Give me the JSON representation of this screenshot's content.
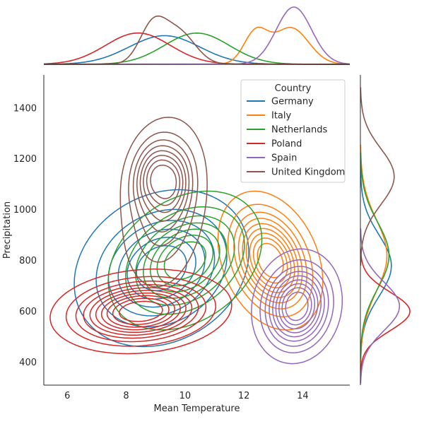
{
  "chart_data": {
    "type": "kde-joint",
    "xlabel": "Mean Temperature",
    "ylabel": "Precipitation",
    "xlim": [
      5.2,
      15.6
    ],
    "ylim": [
      310,
      1530
    ],
    "xticks": [
      6,
      8,
      10,
      12,
      14
    ],
    "yticks": [
      400,
      600,
      800,
      1000,
      1200,
      1400
    ],
    "grid": false,
    "legend": {
      "title": "Country",
      "position": "top-right"
    },
    "series": [
      {
        "name": "Germany",
        "color": "#1f77b4",
        "components": [
          {
            "mx": 9.2,
            "my": 770,
            "sx": 1.25,
            "sy": 130,
            "rho": 0.2,
            "w": 1
          }
        ],
        "levels": 6
      },
      {
        "name": "Italy",
        "color": "#ff7f0e",
        "components": [
          {
            "mx": 12.9,
            "my": 800,
            "sx": 0.75,
            "sy": 115,
            "rho": -0.3,
            "w": 1
          }
        ],
        "levels": 9
      },
      {
        "name": "Netherlands",
        "color": "#2ca02c",
        "components": [
          {
            "mx": 10.0,
            "my": 800,
            "sx": 1.1,
            "sy": 115,
            "rho": 0.3,
            "w": 1
          }
        ],
        "levels": 7
      },
      {
        "name": "Poland",
        "color": "#d62728",
        "components": [
          {
            "mx": 8.5,
            "my": 600,
            "sx": 1.3,
            "sy": 70,
            "rho": 0.15,
            "w": 1
          }
        ],
        "levels": 10
      },
      {
        "name": "Spain",
        "color": "#9467bd",
        "components": [
          {
            "mx": 13.8,
            "my": 620,
            "sx": 0.65,
            "sy": 95,
            "rho": 0.1,
            "w": 1
          }
        ],
        "levels": 9
      },
      {
        "name": "United Kingdom",
        "color": "#8c564b",
        "components": [
          {
            "mx": 8.9,
            "my": 1140,
            "sx": 0.45,
            "sy": 85,
            "rho": 0.2,
            "w": 1
          },
          {
            "mx": 9.6,
            "my": 1110,
            "sx": 0.4,
            "sy": 80,
            "rho": 0.1,
            "w": 0.8
          },
          {
            "mx": 9.3,
            "my": 1020,
            "sx": 0.7,
            "sy": 160,
            "rho": 0.2,
            "w": 0.9
          }
        ],
        "levels": 8
      }
    ],
    "marginal_x": [
      {
        "name": "Germany",
        "peaks": [
          {
            "m": 9.3,
            "s": 1.2,
            "w": 1
          }
        ]
      },
      {
        "name": "Italy",
        "peaks": [
          {
            "m": 12.4,
            "s": 0.4,
            "w": 0.6
          },
          {
            "m": 13.6,
            "s": 0.6,
            "w": 0.7
          }
        ]
      },
      {
        "name": "Netherlands",
        "peaks": [
          {
            "m": 10.4,
            "s": 1.1,
            "w": 1
          }
        ]
      },
      {
        "name": "Poland",
        "peaks": [
          {
            "m": 8.4,
            "s": 1.1,
            "w": 1
          }
        ]
      },
      {
        "name": "Spain",
        "peaks": [
          {
            "m": 13.7,
            "s": 0.6,
            "w": 1
          }
        ]
      },
      {
        "name": "United Kingdom",
        "peaks": [
          {
            "m": 8.9,
            "s": 0.45,
            "w": 0.6
          },
          {
            "m": 9.8,
            "s": 0.55,
            "w": 0.5
          }
        ]
      }
    ],
    "marginal_y": [
      {
        "name": "Germany",
        "peaks": [
          {
            "m": 780,
            "s": 120,
            "w": 1
          }
        ]
      },
      {
        "name": "Italy",
        "peaks": [
          {
            "m": 820,
            "s": 140,
            "w": 1
          }
        ]
      },
      {
        "name": "Netherlands",
        "peaks": [
          {
            "m": 820,
            "s": 130,
            "w": 1
          }
        ]
      },
      {
        "name": "Poland",
        "peaks": [
          {
            "m": 600,
            "s": 75,
            "w": 1
          }
        ]
      },
      {
        "name": "Spain",
        "peaks": [
          {
            "m": 620,
            "s": 95,
            "w": 1
          }
        ]
      },
      {
        "name": "United Kingdom",
        "peaks": [
          {
            "m": 1130,
            "s": 110,
            "w": 1
          }
        ]
      }
    ]
  }
}
